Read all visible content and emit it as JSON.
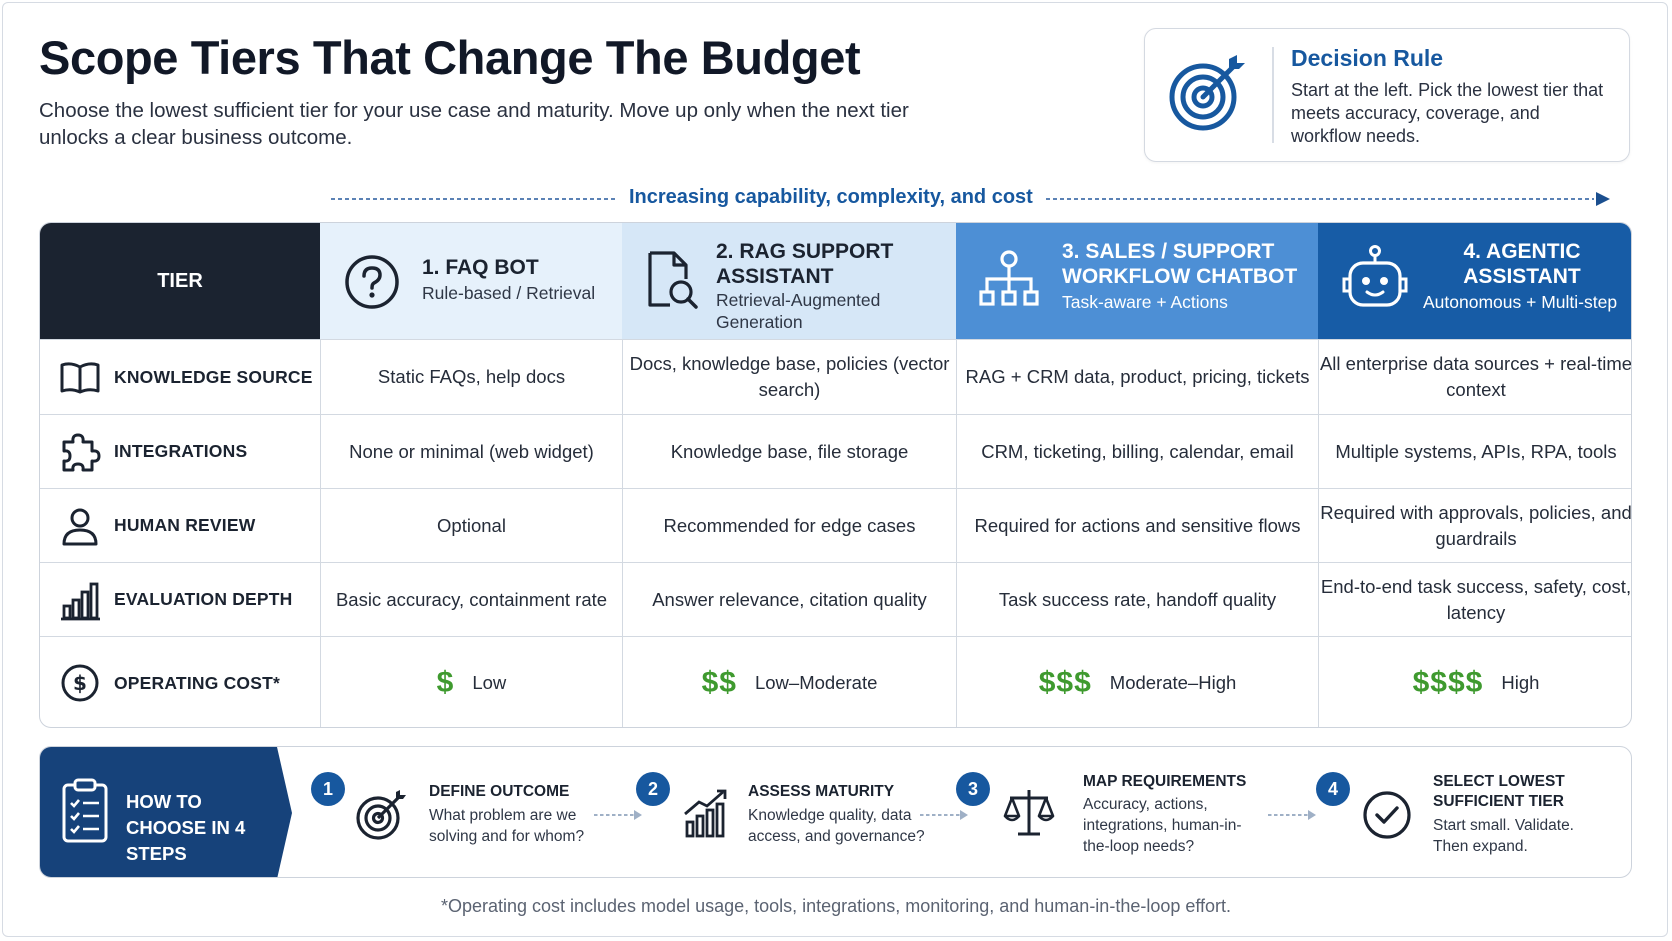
{
  "header": {
    "title": "Scope Tiers That Change The Budget",
    "subtitle": "Choose the lowest sufficient tier for your use case and maturity. Move up only when the next tier unlocks a clear business outcome."
  },
  "decision_rule": {
    "title": "Decision Rule",
    "text": "Start at the left. Pick the lowest tier that meets accuracy, coverage, and workflow needs.",
    "icon": "target-icon"
  },
  "progression": {
    "label": "Increasing capability, complexity, and cost"
  },
  "table": {
    "corner_label": "TIER",
    "tiers": [
      {
        "title": "1. FAQ BOT",
        "subtitle": "Rule-based / Retrieval",
        "icon": "question-circle-icon",
        "color": "#e6f1fb"
      },
      {
        "title": "2. RAG SUPPORT ASSISTANT",
        "subtitle": "Retrieval-Augmented Generation",
        "icon": "document-search-icon",
        "color": "#d6e7f7"
      },
      {
        "title": "3. SALES / SUPPORT WORKFLOW CHATBOT",
        "subtitle": "Task-aware + Actions",
        "icon": "workflow-icon",
        "color": "#4d8fd5"
      },
      {
        "title": "4. AGENTIC ASSISTANT",
        "subtitle": "Autonomous + Multi-step",
        "icon": "robot-icon",
        "color": "#175ca6"
      }
    ],
    "rows": [
      {
        "label": "KNOWLEDGE SOURCE",
        "icon": "book-icon",
        "cells": [
          "Static FAQs, help docs",
          "Docs, knowledge base, policies (vector search)",
          "RAG + CRM data, product, pricing, tickets",
          "All enterprise data sources + real-time context"
        ]
      },
      {
        "label": "INTEGRATIONS",
        "icon": "puzzle-icon",
        "cells": [
          "None or minimal (web widget)",
          "Knowledge base, file storage",
          "CRM, ticketing, billing, calendar, email",
          "Multiple systems, APIs, RPA, tools"
        ]
      },
      {
        "label": "HUMAN REVIEW",
        "icon": "person-icon",
        "cells": [
          "Optional",
          "Recommended for edge cases",
          "Required for actions and sensitive flows",
          "Required with approvals, policies, and guardrails"
        ]
      },
      {
        "label": "EVALUATION DEPTH",
        "icon": "bar-chart-icon",
        "cells": [
          "Basic accuracy, containment rate",
          "Answer relevance, citation quality",
          "Task success rate, handoff quality",
          "End-to-end task success, safety, cost, latency"
        ]
      },
      {
        "label": "OPERATING COST*",
        "icon": "dollar-circle-icon",
        "costs": [
          {
            "symbol": "$",
            "level": "Low"
          },
          {
            "symbol": "$$",
            "level": "Low–Moderate"
          },
          {
            "symbol": "$$$",
            "level": "Moderate–High"
          },
          {
            "symbol": "$$$$",
            "level": "High"
          }
        ]
      }
    ]
  },
  "steps": {
    "heading": "HOW TO CHOOSE IN 4 STEPS",
    "items": [
      {
        "num": "1",
        "title": "DEFINE OUTCOME",
        "text": "What problem are we solving and for whom?",
        "icon": "target-icon"
      },
      {
        "num": "2",
        "title": "ASSESS MATURITY",
        "text": "Knowledge quality, data access, and governance?",
        "icon": "growth-chart-icon"
      },
      {
        "num": "3",
        "title": "MAP REQUIREMENTS",
        "text": "Accuracy, actions, integrations, human-in-the-loop needs?",
        "icon": "scale-icon"
      },
      {
        "num": "4",
        "title": "SELECT LOWEST SUFFICIENT TIER",
        "text": "Start small. Validate. Then expand.",
        "icon": "check-circle-icon"
      }
    ]
  },
  "footnote": "*Operating cost includes model usage, tools, integrations, monitoring, and human-in-the-loop effort.",
  "colors": {
    "accent_blue": "#17589f",
    "dark_navy": "#1b2330",
    "cost_green": "#3f9a2f",
    "steps_navy": "#16427a"
  }
}
